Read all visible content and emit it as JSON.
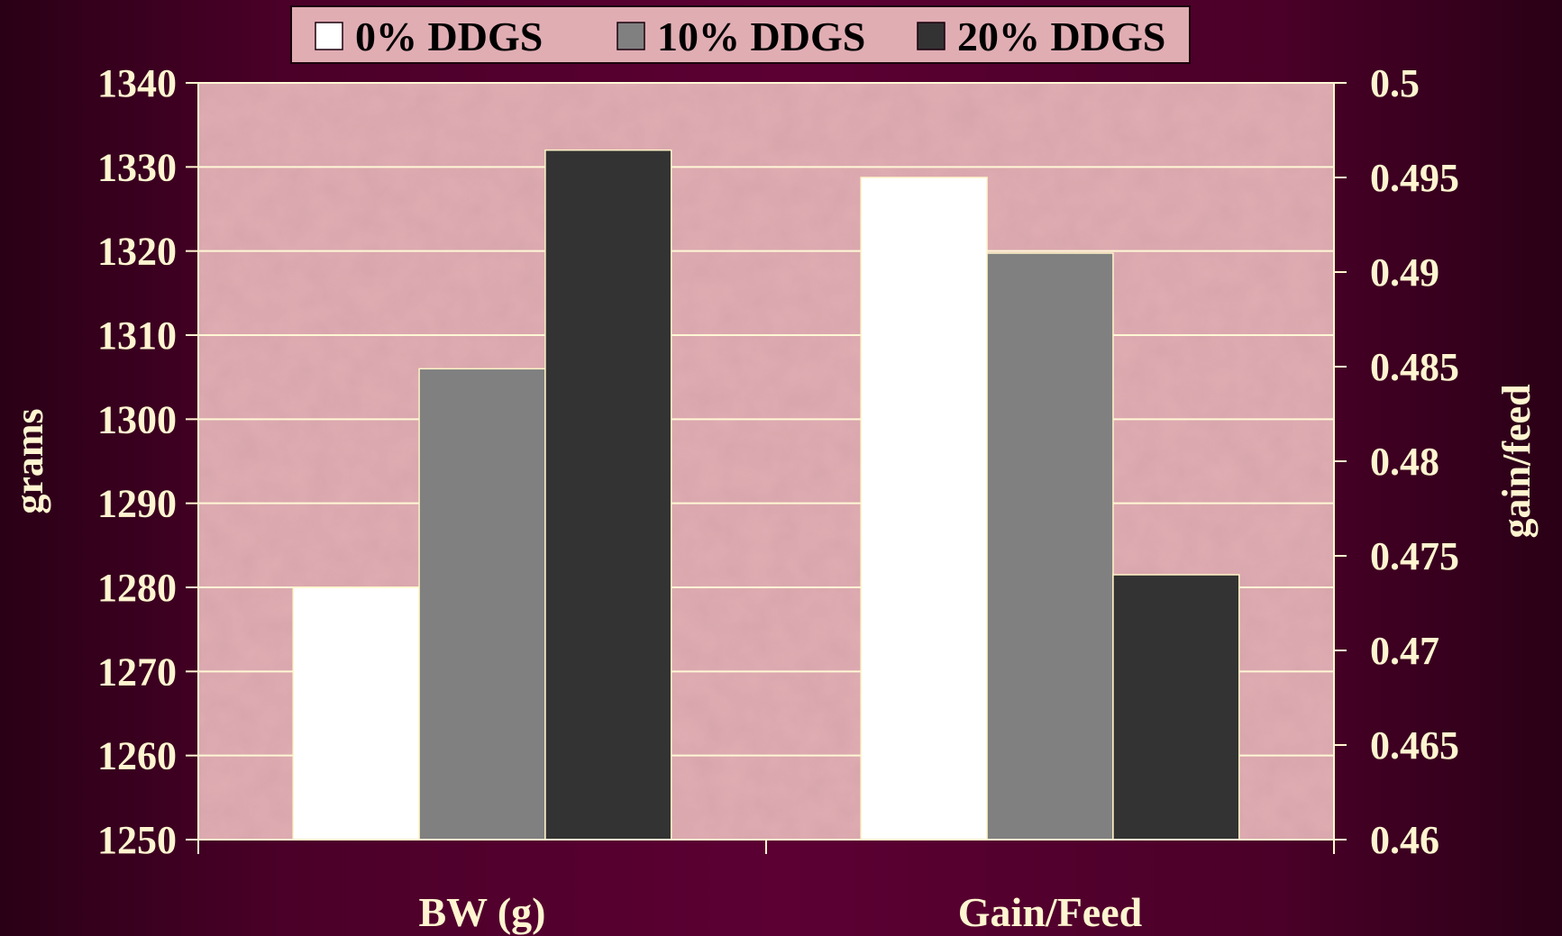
{
  "chart_data": {
    "type": "bar",
    "categories": [
      "BW (g)",
      "Gain/Feed"
    ],
    "series": [
      {
        "name": "0% DDGS",
        "values": [
          1280,
          0.495
        ],
        "color": "#ffffff"
      },
      {
        "name": "10% DDGS",
        "values": [
          1306,
          0.491
        ],
        "color": "#808080"
      },
      {
        "name": "20% DDGS",
        "values": [
          1332,
          0.474
        ],
        "color": "#333333"
      }
    ],
    "category_axis": [
      "left",
      "right"
    ],
    "left_axis": {
      "label": "grams",
      "ylim": [
        1250,
        1340
      ],
      "ticks": [
        "1250",
        "1260",
        "1270",
        "1280",
        "1290",
        "1300",
        "1310",
        "1320",
        "1330",
        "1340"
      ]
    },
    "right_axis": {
      "label": "gain/feed",
      "ylim": [
        0.46,
        0.5
      ],
      "ticks": [
        "0.46",
        "0.465",
        "0.47",
        "0.475",
        "0.48",
        "0.485",
        "0.49",
        "0.495",
        "0.5"
      ]
    },
    "grid": true,
    "legend_position": "top",
    "colors": {
      "plot_background": "#e0adb3",
      "gridline": "#fff8d6",
      "axis_text": "#fff5d0",
      "bar_border": "#fff5c8"
    }
  }
}
